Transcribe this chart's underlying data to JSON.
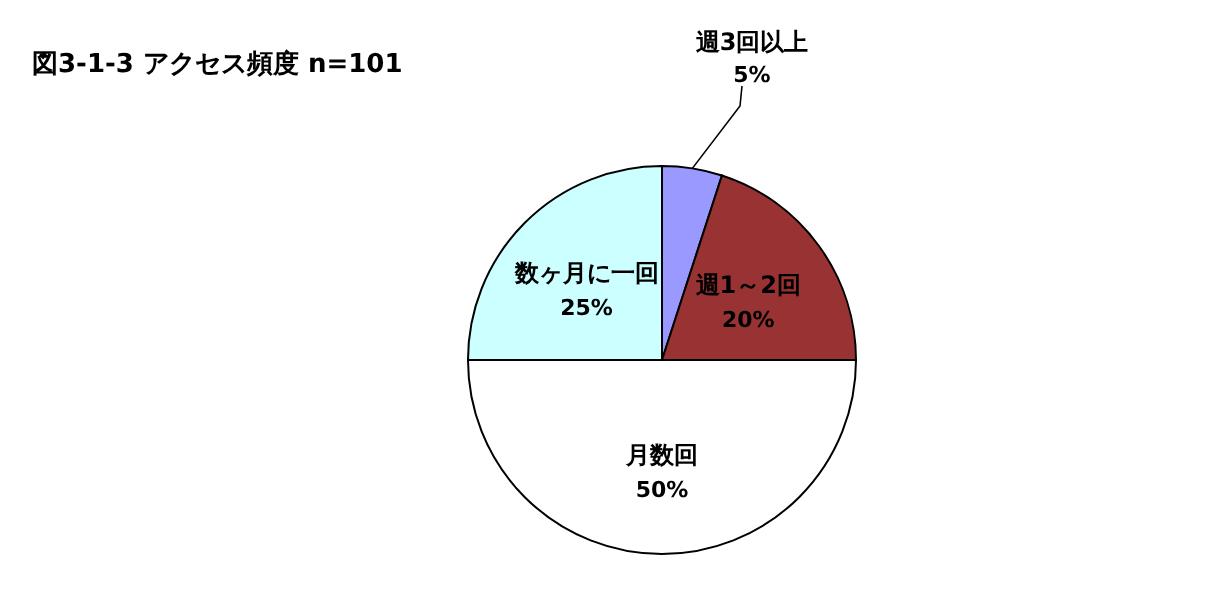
{
  "chart_data": {
    "type": "pie",
    "title": "図3-1-3 アクセス頻度 n=101",
    "categories": [
      "週3回以上",
      "週1～2回",
      "月数回",
      "数ヶ月に一回"
    ],
    "values": [
      5,
      20,
      50,
      25
    ],
    "value_labels": [
      "5%",
      "20%",
      "50%",
      "25%"
    ],
    "colors": [
      "#9999ff",
      "#993333",
      "#ffffff",
      "#ccffff"
    ]
  }
}
